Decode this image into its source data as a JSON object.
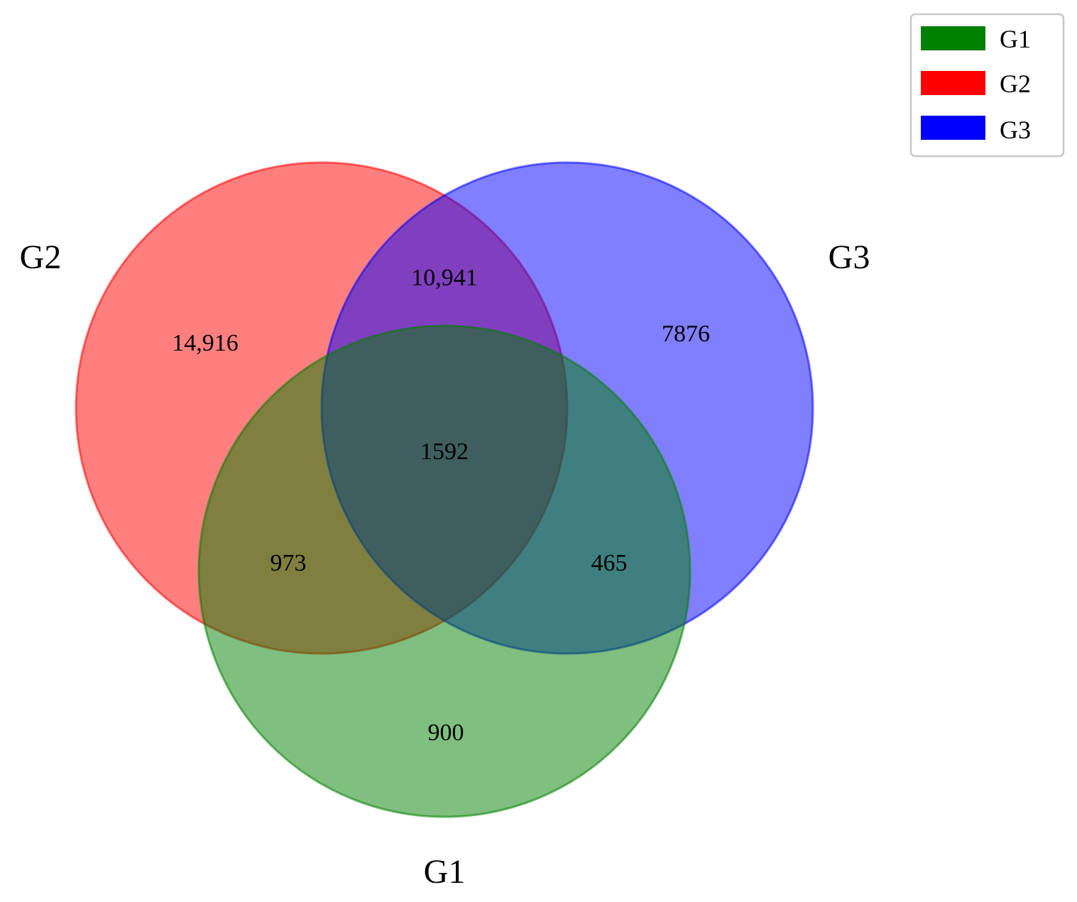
{
  "sets": [
    {
      "id": "G1",
      "label": "G1",
      "color": "#008000"
    },
    {
      "id": "G2",
      "label": "G2",
      "color": "#ff0000"
    },
    {
      "id": "G3",
      "label": "G3",
      "color": "#0000ff"
    }
  ],
  "regions": {
    "g2_only": "14,916",
    "g2_g3": "10,941",
    "g3_only": "7876",
    "g1_g2_g3": "1592",
    "g1_g2": "973",
    "g1_g3": "465",
    "g1_only": "900"
  },
  "legend": {
    "items": [
      {
        "label": "G1",
        "color": "#008000"
      },
      {
        "label": "G2",
        "color": "#ff0000"
      },
      {
        "label": "G3",
        "color": "#0000ff"
      }
    ]
  }
}
